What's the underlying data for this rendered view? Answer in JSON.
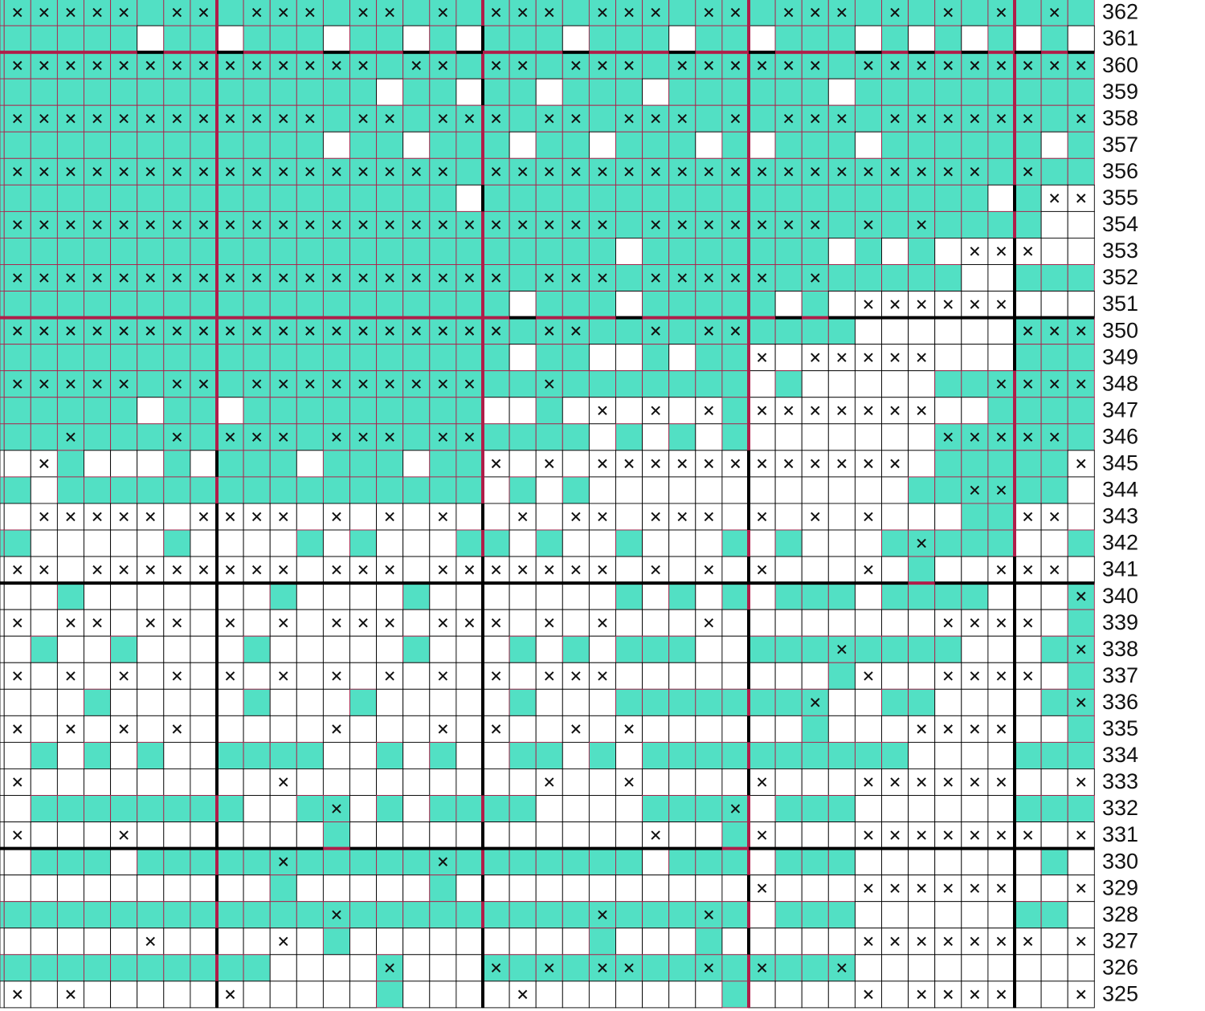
{
  "row_numbers": [
    362,
    361,
    360,
    359,
    358,
    357,
    356,
    355,
    354,
    353,
    352,
    351,
    350,
    349,
    348,
    347,
    346,
    345,
    344,
    343,
    342,
    341,
    340,
    339,
    338,
    337,
    336,
    335,
    334,
    333,
    332,
    331,
    330,
    329,
    328,
    327,
    326,
    325
  ]
}
